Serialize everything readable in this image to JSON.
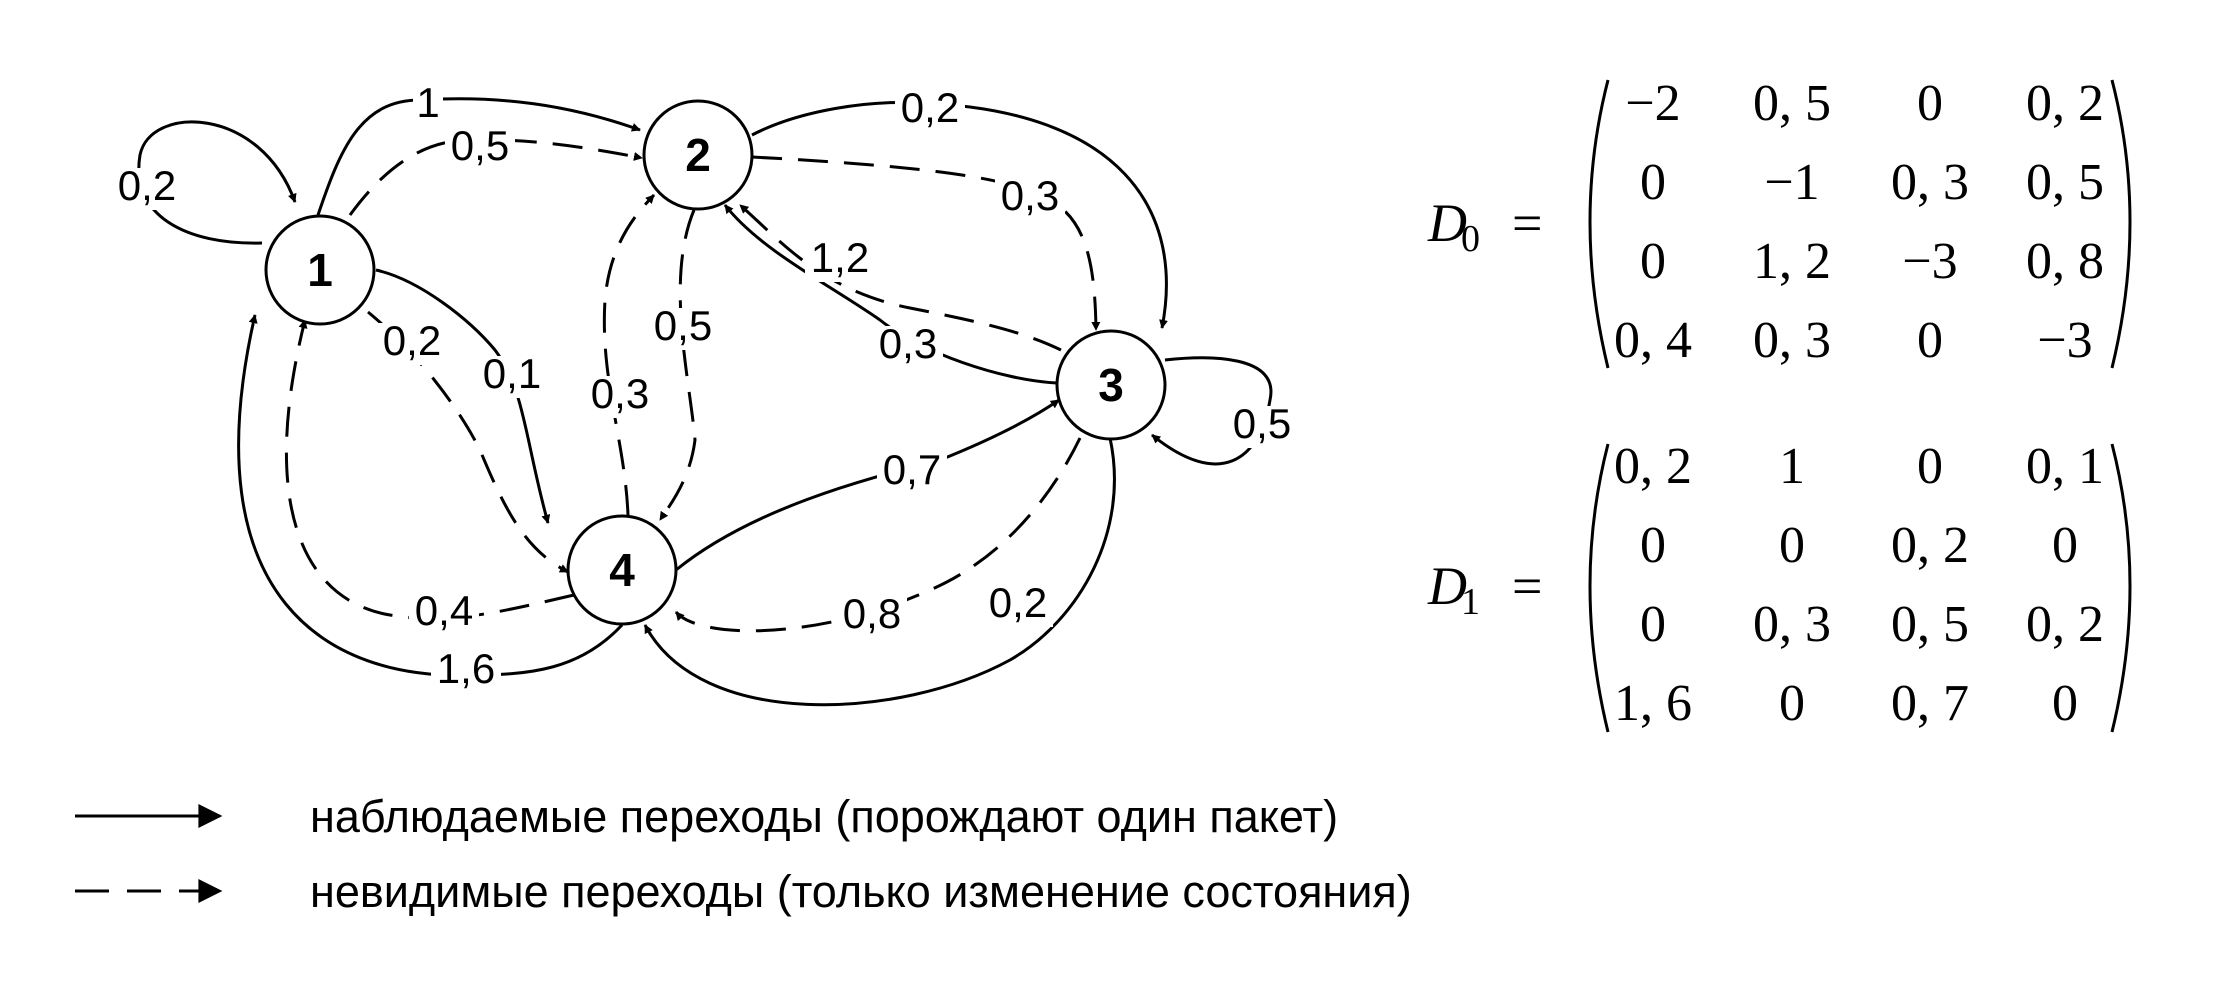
{
  "states": [
    {
      "id": "1",
      "label": "1"
    },
    {
      "id": "2",
      "label": "2"
    },
    {
      "id": "3",
      "label": "3"
    },
    {
      "id": "4",
      "label": "4"
    }
  ],
  "edges": [
    {
      "from": "1",
      "to": "1",
      "label": "0,2",
      "style": "solid"
    },
    {
      "from": "1",
      "to": "2",
      "label": "1",
      "style": "solid"
    },
    {
      "from": "1",
      "to": "2",
      "label": "0,5",
      "style": "dashed"
    },
    {
      "from": "1",
      "to": "4",
      "label": "0,1",
      "style": "solid"
    },
    {
      "from": "1",
      "to": "4",
      "label": "0,2",
      "style": "dashed"
    },
    {
      "from": "2",
      "to": "3",
      "label": "0,2",
      "style": "solid"
    },
    {
      "from": "2",
      "to": "3",
      "label": "0,3",
      "style": "dashed"
    },
    {
      "from": "2",
      "to": "4",
      "label": "0,5",
      "style": "dashed"
    },
    {
      "from": "3",
      "to": "2",
      "label": "1,2",
      "style": "dashed"
    },
    {
      "from": "3",
      "to": "2",
      "label": "0,3",
      "style": "solid"
    },
    {
      "from": "3",
      "to": "3",
      "label": "0,5",
      "style": "solid"
    },
    {
      "from": "3",
      "to": "4",
      "label": "0,8",
      "style": "dashed"
    },
    {
      "from": "3",
      "to": "4",
      "label": "0,2",
      "style": "solid"
    },
    {
      "from": "4",
      "to": "3",
      "label": "0,7",
      "style": "solid"
    },
    {
      "from": "4",
      "to": "2",
      "label": "0,3",
      "style": "dashed"
    },
    {
      "from": "4",
      "to": "1",
      "label": "0,4",
      "style": "dashed"
    },
    {
      "from": "4",
      "to": "1",
      "label": "1,6",
      "style": "solid"
    }
  ],
  "matrices": [
    {
      "name": "D",
      "subscript": "0",
      "equals": "=",
      "rows": [
        [
          "−2",
          "0, 5",
          "0",
          "0, 2"
        ],
        [
          "0",
          "−1",
          "0, 3",
          "0, 5"
        ],
        [
          "0",
          "1, 2",
          "−3",
          "0, 8"
        ],
        [
          "0, 4",
          "0, 3",
          "0",
          "−3"
        ]
      ]
    },
    {
      "name": "D",
      "subscript": "1",
      "equals": "=",
      "rows": [
        [
          "0, 2",
          "1",
          "0",
          "0, 1"
        ],
        [
          "0",
          "0",
          "0, 2",
          "0"
        ],
        [
          "0",
          "0, 3",
          "0, 5",
          "0, 2"
        ],
        [
          "1, 6",
          "0",
          "0, 7",
          "0"
        ]
      ]
    }
  ],
  "legend": [
    {
      "style": "solid",
      "text": "наблюдаемые переходы (порождают один пакет)"
    },
    {
      "style": "dashed",
      "text": "невидимые переходы (только изменение состояния)"
    }
  ]
}
